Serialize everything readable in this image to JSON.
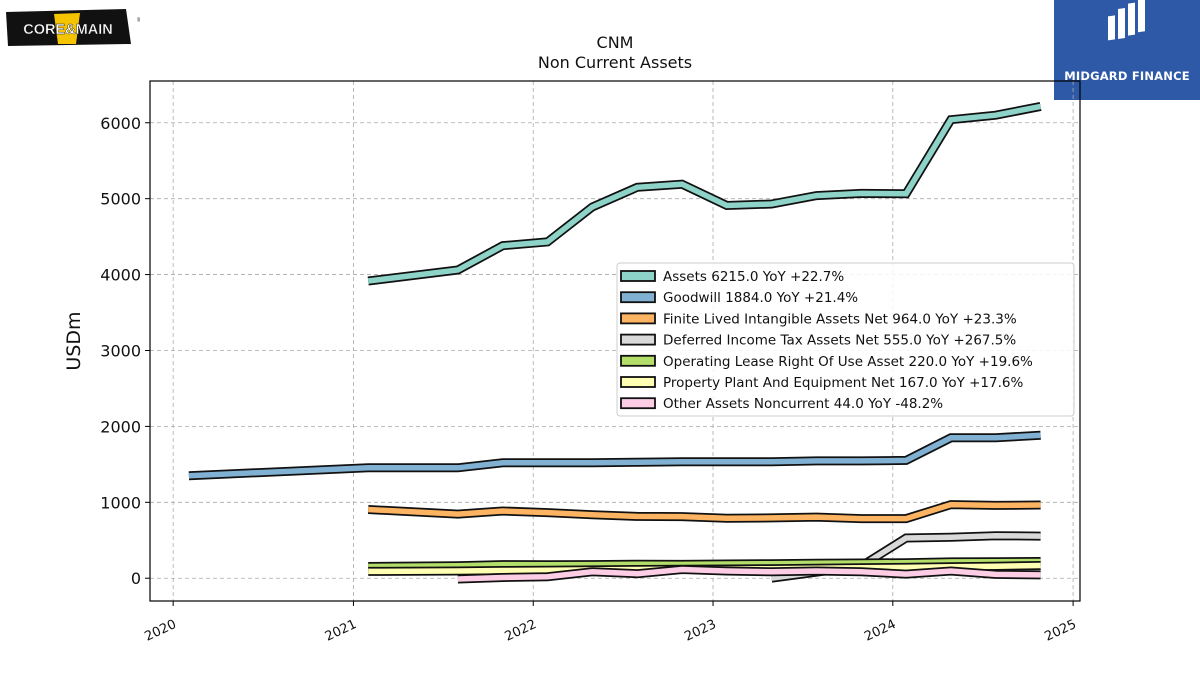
{
  "logos": {
    "left": "CORE&MAIN",
    "right": "MIDGARD FINANCE"
  },
  "colors": {
    "assets": "#8dd3c7",
    "goodwill": "#80b1d3",
    "finite": "#fdb462",
    "deferred": "#d9d9d9",
    "lease": "#b3de69",
    "ppe": "#ffffb3",
    "other": "#fccde5",
    "brand_blue": "#2e59a7",
    "brand_yellow": "#f5c400"
  },
  "chart_data": {
    "type": "line",
    "title": "CNM",
    "subtitle": "Non Current  Assets",
    "xlabel": "",
    "ylabel": "USDm",
    "xlim": [
      "2019-11-15",
      "2025-01-15"
    ],
    "ylim": [
      -300,
      6550
    ],
    "x_ticks": [
      "2020",
      "2021",
      "2022",
      "2023",
      "2024",
      "2025"
    ],
    "y_ticks": [
      "0",
      "1000",
      "2000",
      "3000",
      "4000",
      "5000",
      "6000"
    ],
    "grid": true,
    "legend_position": "center-right",
    "series": [
      {
        "name": "Assets  6215.0 YoY +22.7%",
        "color_key": "assets",
        "points": [
          [
            "2021-01-31",
            3915
          ],
          [
            "2021-08-01",
            4060
          ],
          [
            "2021-10-31",
            4380
          ],
          [
            "2022-01-30",
            4430
          ],
          [
            "2022-05-01",
            4890
          ],
          [
            "2022-07-31",
            5150
          ],
          [
            "2022-10-30",
            5190
          ],
          [
            "2023-01-29",
            4910
          ],
          [
            "2023-04-30",
            4930
          ],
          [
            "2023-07-30",
            5040
          ],
          [
            "2023-10-29",
            5070
          ],
          [
            "2024-01-28",
            5065
          ],
          [
            "2024-04-28",
            6040
          ],
          [
            "2024-07-28",
            6100
          ],
          [
            "2024-10-27",
            6215
          ]
        ]
      },
      {
        "name": "Goodwill  1884.0 YoY +21.4%",
        "color_key": "goodwill",
        "points": [
          [
            "2020-02-02",
            1350
          ],
          [
            "2021-01-31",
            1455
          ],
          [
            "2021-08-01",
            1455
          ],
          [
            "2021-10-31",
            1520
          ],
          [
            "2022-01-30",
            1520
          ],
          [
            "2022-05-01",
            1520
          ],
          [
            "2022-07-31",
            1528
          ],
          [
            "2022-10-30",
            1535
          ],
          [
            "2023-01-29",
            1535
          ],
          [
            "2023-04-30",
            1535
          ],
          [
            "2023-07-30",
            1545
          ],
          [
            "2023-10-29",
            1545
          ],
          [
            "2024-01-28",
            1552
          ],
          [
            "2024-04-28",
            1850
          ],
          [
            "2024-07-28",
            1850
          ],
          [
            "2024-10-27",
            1884
          ]
        ]
      },
      {
        "name": "Finite Lived Intangible Assets Net  964.0 YoY +23.3%",
        "color_key": "finite",
        "points": [
          [
            "2021-01-31",
            905
          ],
          [
            "2021-08-01",
            845
          ],
          [
            "2021-10-31",
            885
          ],
          [
            "2022-01-30",
            865
          ],
          [
            "2022-05-01",
            835
          ],
          [
            "2022-07-31",
            815
          ],
          [
            "2022-10-30",
            812
          ],
          [
            "2023-01-29",
            790
          ],
          [
            "2023-04-30",
            795
          ],
          [
            "2023-07-30",
            805
          ],
          [
            "2023-10-29",
            785
          ],
          [
            "2024-01-28",
            785
          ],
          [
            "2024-04-28",
            970
          ],
          [
            "2024-07-28",
            960
          ],
          [
            "2024-10-27",
            964
          ]
        ]
      },
      {
        "name": "Deferred Income Tax Assets Net  555.0 YoY +267.5%",
        "color_key": "deferred",
        "points": [
          [
            "2023-04-30",
            0
          ],
          [
            "2023-07-30",
            80
          ],
          [
            "2023-10-29",
            160
          ],
          [
            "2024-01-28",
            530
          ],
          [
            "2024-04-28",
            540
          ],
          [
            "2024-07-28",
            560
          ],
          [
            "2024-10-27",
            555
          ]
        ]
      },
      {
        "name": "Operating Lease Right Of Use Asset  220.0 YoY +19.6%",
        "color_key": "lease",
        "points": [
          [
            "2021-01-31",
            155
          ],
          [
            "2021-08-01",
            165
          ],
          [
            "2021-10-31",
            180
          ],
          [
            "2022-01-30",
            178
          ],
          [
            "2022-05-01",
            180
          ],
          [
            "2022-07-31",
            185
          ],
          [
            "2022-10-30",
            182
          ],
          [
            "2023-01-29",
            188
          ],
          [
            "2023-04-30",
            192
          ],
          [
            "2023-07-30",
            196
          ],
          [
            "2023-10-29",
            200
          ],
          [
            "2024-01-28",
            205
          ],
          [
            "2024-04-28",
            215
          ],
          [
            "2024-07-28",
            218
          ],
          [
            "2024-10-27",
            220
          ]
        ]
      },
      {
        "name": "Property Plant And Equipment Net  167.0 YoY +17.6%",
        "color_key": "ppe",
        "points": [
          [
            "2021-01-31",
            90
          ],
          [
            "2021-08-01",
            95
          ],
          [
            "2021-10-31",
            102
          ],
          [
            "2022-01-30",
            105
          ],
          [
            "2022-05-01",
            110
          ],
          [
            "2022-07-31",
            115
          ],
          [
            "2022-10-30",
            118
          ],
          [
            "2023-01-29",
            122
          ],
          [
            "2023-04-30",
            126
          ],
          [
            "2023-07-30",
            132
          ],
          [
            "2023-10-29",
            138
          ],
          [
            "2024-01-28",
            142
          ],
          [
            "2024-04-28",
            150
          ],
          [
            "2024-07-28",
            158
          ],
          [
            "2024-10-27",
            167
          ]
        ]
      },
      {
        "name": "Other Assets Noncurrent  44.0 YoY -48.2%",
        "color_key": "other",
        "points": [
          [
            "2021-08-01",
            -10
          ],
          [
            "2021-10-31",
            10
          ],
          [
            "2022-01-30",
            20
          ],
          [
            "2022-05-01",
            85
          ],
          [
            "2022-07-31",
            60
          ],
          [
            "2022-10-30",
            115
          ],
          [
            "2023-01-29",
            95
          ],
          [
            "2023-04-30",
            85
          ],
          [
            "2023-07-30",
            95
          ],
          [
            "2023-10-29",
            85
          ],
          [
            "2024-01-28",
            55
          ],
          [
            "2024-04-28",
            95
          ],
          [
            "2024-07-28",
            50
          ],
          [
            "2024-10-27",
            44
          ]
        ]
      }
    ]
  }
}
